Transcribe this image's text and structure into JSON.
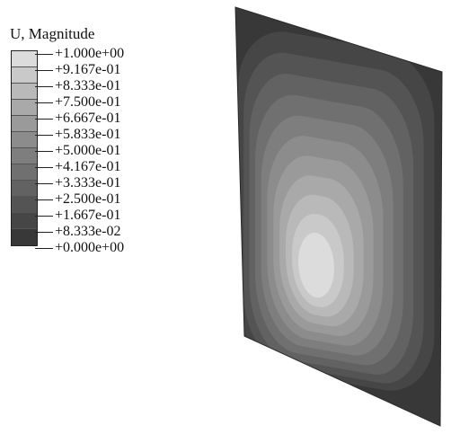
{
  "legend": {
    "title": "U, Magnitude",
    "levels": [
      "+1.000e+00",
      "+9.167e-01",
      "+8.333e-01",
      "+7.500e-01",
      "+6.667e-01",
      "+5.833e-01",
      "+5.000e-01",
      "+4.167e-01",
      "+3.333e-01",
      "+2.500e-01",
      "+1.667e-01",
      "+8.333e-02",
      "+0.000e+00"
    ],
    "band_colors": [
      "#dcdcdc",
      "#c9c9c9",
      "#b9b9b9",
      "#a9a9a9",
      "#9a9a9a",
      "#8c8c8c",
      "#7e7e7e",
      "#707070",
      "#626262",
      "#545454",
      "#464646",
      "#383838"
    ]
  },
  "contour": {
    "min": 0.0,
    "max": 1.0,
    "n_bands": 12,
    "peak_location": "lower-center of plate"
  }
}
